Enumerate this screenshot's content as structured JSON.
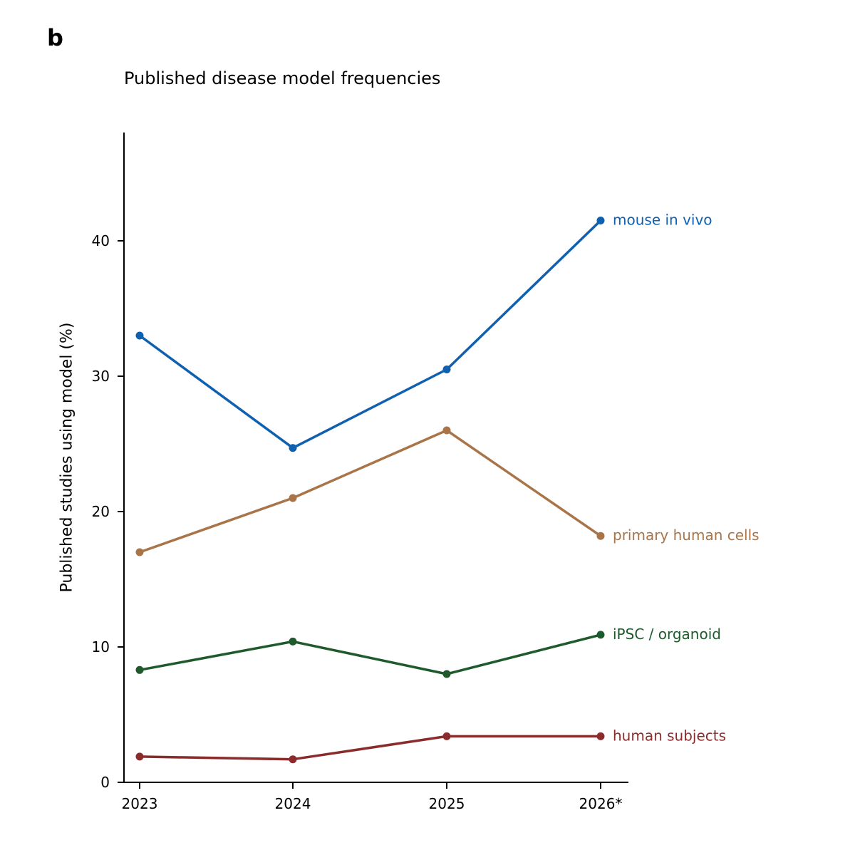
{
  "panel_label": "b",
  "chart_data": {
    "type": "line",
    "title": "Published disease model frequencies",
    "xlabel": "",
    "ylabel": "Published studies using model (%)",
    "categories": [
      "2023",
      "2024",
      "2025",
      "2026*"
    ],
    "ylim": [
      0,
      48
    ],
    "yticks": [
      0,
      10,
      20,
      30,
      40
    ],
    "grid": false,
    "legend": "direct labels at line ends",
    "series": [
      {
        "name": "mouse in vivo",
        "color": "#1060b0",
        "values": [
          33.0,
          24.7,
          30.5,
          41.5
        ]
      },
      {
        "name": "primary human cells",
        "color": "#a87448",
        "values": [
          17.0,
          21.0,
          26.0,
          18.2
        ]
      },
      {
        "name": "iPSC / organoid",
        "color": "#1e5a2c",
        "values": [
          8.3,
          10.4,
          8.0,
          10.9
        ]
      },
      {
        "name": "human subjects",
        "color": "#8b2c2c",
        "values": [
          1.9,
          1.7,
          3.4,
          3.4
        ]
      }
    ]
  }
}
